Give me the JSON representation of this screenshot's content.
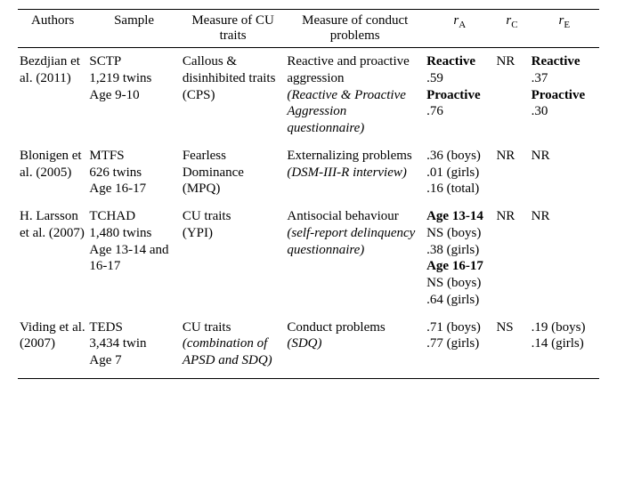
{
  "headers": {
    "authors": "Authors",
    "sample": "Sample",
    "cu": "Measure of CU traits",
    "conduct": "Measure of conduct problems",
    "ra_base": "r",
    "ra_sub": "A",
    "rc_base": "r",
    "rc_sub": "C",
    "re_base": "r",
    "re_sub": "E"
  },
  "r1": {
    "authors": "Bezdjian et al. (2011)",
    "sample_l1": "SCTP",
    "sample_l2": "1,219 twins",
    "sample_l3": "Age 9-10",
    "cu_l1": "Callous & disinhibited traits",
    "cu_l2": "(CPS)",
    "conduct_l1": "Reactive and proactive aggression",
    "conduct_l2": "(Reactive & Proactive Aggression questionnaire)",
    "ra_b1": "Reactive",
    "ra_v1": ".59",
    "ra_b2": "Proactive",
    "ra_v2": ".76",
    "rc": "NR",
    "re_b1": "Reactive",
    "re_v1": ".37",
    "re_b2": "Proactive",
    "re_v2": ".30"
  },
  "r2": {
    "authors": "Blonigen et al. (2005)",
    "sample_l1": "MTFS",
    "sample_l2": "626 twins",
    "sample_l3": "Age 16-17",
    "cu_l1": "Fearless Dominance",
    "cu_l2": "(MPQ)",
    "conduct_l1": "Externalizing problems",
    "conduct_l2": "(DSM-III-R interview)",
    "ra_l1": ".36 (boys)",
    "ra_l2": ".01 (girls)",
    "ra_l3": ".16 (total)",
    "rc": "NR",
    "re": "NR"
  },
  "r3": {
    "authors": "H. Larsson et al. (2007)",
    "sample_l1": "TCHAD",
    "sample_l2": "1,480 twins",
    "sample_l3": "Age 13-14 and 16-17",
    "cu_l1": "CU traits",
    "cu_l2": "(YPI)",
    "conduct_l1": "Antisocial behaviour",
    "conduct_l2": "(self-report delinquency questionnaire)",
    "ra_b1": "Age 13-14",
    "ra_l1": "NS (boys)",
    "ra_l2": ".38 (girls)",
    "ra_b2": "Age 16-17",
    "ra_l3": "NS (boys)",
    "ra_l4": ".64 (girls)",
    "rc": "NR",
    "re": "NR"
  },
  "r4": {
    "authors": "Viding et al. (2007)",
    "sample_l1": "TEDS",
    "sample_l2": "3,434 twin",
    "sample_l3": "Age 7",
    "cu_l1": "CU traits",
    "cu_l2": "(combination of APSD and SDQ)",
    "conduct_l1": "Conduct problems",
    "conduct_l2": "(SDQ)",
    "ra_l1": ".71 (boys)",
    "ra_l2": ".77 (girls)",
    "rc": "NS",
    "re_l1": ".19 (boys)",
    "re_l2": ".14 (girls)"
  }
}
